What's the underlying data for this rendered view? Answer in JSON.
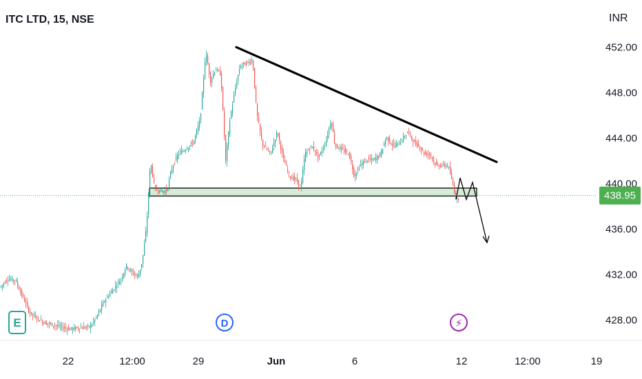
{
  "header": {
    "title": "ITC LTD, 15, NSE",
    "currency": "INR"
  },
  "colors": {
    "up": "#26a69a",
    "down": "#ef5350",
    "last_price_tag": "#4caf50",
    "zone_fill": "#c8e6c9",
    "trendline": "#000000"
  },
  "markers": [
    {
      "id": "earnings",
      "letter": "E",
      "color": "#26a69a"
    },
    {
      "id": "dividend",
      "letter": "D",
      "color": "#2962ff"
    },
    {
      "id": "split",
      "letter": "⚡",
      "color": "#9c27b0"
    }
  ],
  "chart_data": {
    "type": "candlestick",
    "symbol": "ITC LTD",
    "interval": "15",
    "exchange": "NSE",
    "currency": "INR",
    "last_price": 438.95,
    "last_price_label": "438.95",
    "y_ticks": [
      "452.00",
      "448.00",
      "444.00",
      "440.00",
      "436.00",
      "432.00",
      "428.00"
    ],
    "y_tick_values": [
      452,
      448,
      444,
      440,
      436,
      432,
      428
    ],
    "x_ticks": [
      "22",
      "12:00",
      "29",
      "Jun",
      "6",
      "12",
      "12:00",
      "19"
    ],
    "ylim": [
      426.2,
      455.3
    ],
    "price_path": [
      [
        0,
        430.9
      ],
      [
        10,
        431.6
      ],
      [
        22,
        431.5
      ],
      [
        28,
        430.6
      ],
      [
        35,
        429.7
      ],
      [
        43,
        428.6
      ],
      [
        62,
        427.8
      ],
      [
        100,
        427.2
      ],
      [
        130,
        427.4
      ],
      [
        140,
        428.3
      ],
      [
        150,
        429.6
      ],
      [
        165,
        430.8
      ],
      [
        175,
        431.6
      ],
      [
        183,
        432.8
      ],
      [
        190,
        432.2
      ],
      [
        200,
        431.8
      ],
      [
        206,
        433.2
      ],
      [
        212,
        436.2
      ],
      [
        218,
        442.0
      ],
      [
        224,
        439.5
      ],
      [
        234,
        439.3
      ],
      [
        242,
        439.4
      ],
      [
        248,
        441.2
      ],
      [
        258,
        442.6
      ],
      [
        270,
        443.1
      ],
      [
        280,
        443.6
      ],
      [
        290,
        445.6
      ],
      [
        298,
        451.6
      ],
      [
        305,
        449.0
      ],
      [
        312,
        450.1
      ],
      [
        320,
        449.6
      ],
      [
        327,
        442.0
      ],
      [
        333,
        445.6
      ],
      [
        340,
        448.1
      ],
      [
        348,
        450.4
      ],
      [
        358,
        450.6
      ],
      [
        366,
        450.9
      ],
      [
        372,
        446.2
      ],
      [
        380,
        443.5
      ],
      [
        392,
        442.6
      ],
      [
        402,
        444.6
      ],
      [
        410,
        442.3
      ],
      [
        420,
        440.6
      ],
      [
        430,
        440.3
      ],
      [
        436,
        439.6
      ],
      [
        442,
        442.6
      ],
      [
        452,
        443.3
      ],
      [
        462,
        442.3
      ],
      [
        472,
        443.6
      ],
      [
        480,
        445.6
      ],
      [
        486,
        443.3
      ],
      [
        496,
        443.0
      ],
      [
        506,
        442.6
      ],
      [
        514,
        440.6
      ],
      [
        522,
        441.6
      ],
      [
        532,
        442.1
      ],
      [
        542,
        442.1
      ],
      [
        552,
        442.6
      ],
      [
        560,
        444.1
      ],
      [
        570,
        443.3
      ],
      [
        580,
        443.6
      ],
      [
        592,
        444.6
      ],
      [
        600,
        443.6
      ],
      [
        608,
        443.3
      ],
      [
        616,
        442.6
      ],
      [
        624,
        442.6
      ],
      [
        632,
        441.6
      ],
      [
        642,
        441.6
      ],
      [
        650,
        441.6
      ],
      [
        656,
        440.1
      ],
      [
        662,
        438.6
      ],
      [
        666,
        438.8
      ]
    ],
    "support_zone": {
      "top": 439.6,
      "bottom": 438.9,
      "x_start": 217,
      "x_end": 692
    },
    "trendline": {
      "x1": 343,
      "y1": 452.0,
      "x2": 721,
      "y2": 441.9
    },
    "projection_path": [
      [
        662,
        438.6
      ],
      [
        668,
        440.5
      ],
      [
        677,
        438.6
      ],
      [
        686,
        440.1
      ],
      [
        707,
        434.8
      ]
    ]
  }
}
